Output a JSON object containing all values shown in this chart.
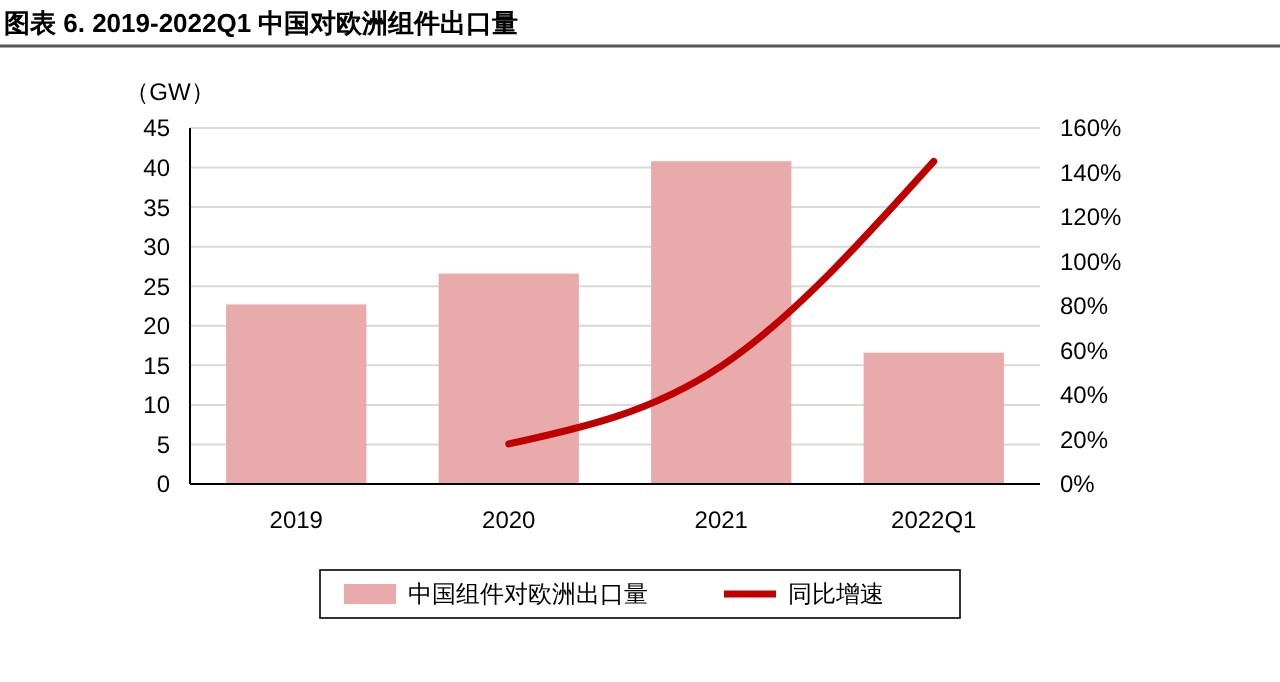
{
  "chart_data": {
    "type": "bar",
    "title": "图表 6. 2019-2022Q1 中国对欧洲组件出口量",
    "ylabel": "（GW）",
    "categories": [
      "2019",
      "2020",
      "2021",
      "2022Q1"
    ],
    "series": [
      {
        "name": "中国组件对欧洲出口量",
        "color": "#e8aaaa",
        "values": [
          22.7,
          26.6,
          40.8,
          16.6
        ]
      },
      {
        "name": "同比增速",
        "type": "line",
        "axis": "y2",
        "color": "#c00000",
        "values": [
          null,
          18,
          53,
          145
        ]
      }
    ],
    "ylim": [
      0,
      45
    ],
    "yticks": [
      0,
      5,
      10,
      15,
      20,
      25,
      30,
      35,
      40,
      45
    ],
    "y2lim": [
      0,
      160
    ],
    "y2ticks": [
      {
        "value": 0,
        "label": "0%"
      },
      {
        "value": 20,
        "label": "20%"
      },
      {
        "value": 40,
        "label": "40%"
      },
      {
        "value": 60,
        "label": "60%"
      },
      {
        "value": 80,
        "label": "80%"
      },
      {
        "value": 100,
        "label": "100%"
      },
      {
        "value": 120,
        "label": "120%"
      },
      {
        "value": 140,
        "label": "140%"
      },
      {
        "value": 160,
        "label": "160%"
      }
    ],
    "grid": "y",
    "legend": "bottom",
    "marker": "none",
    "line_style": "solid"
  }
}
